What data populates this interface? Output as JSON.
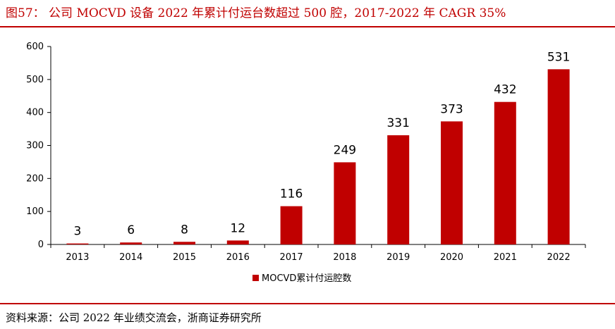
{
  "header": {
    "title": "图57：  公司 MOCVD 设备 2022 年累计付运台数超过 500 腔，2017-2022 年 CAGR 35%"
  },
  "footer": {
    "source": "资料来源：公司 2022 年业绩交流会，浙商证券研究所"
  },
  "colors": {
    "bar": "#c00000",
    "rule": "#c00000"
  },
  "chart_data": {
    "type": "bar",
    "title": "",
    "xlabel": "",
    "ylabel": "",
    "categories": [
      "2013",
      "2014",
      "2015",
      "2016",
      "2017",
      "2018",
      "2019",
      "2020",
      "2021",
      "2022"
    ],
    "series": [
      {
        "name": "MOCVD累计付运腔数",
        "values": [
          3,
          6,
          8,
          12,
          116,
          249,
          331,
          373,
          432,
          531
        ]
      }
    ],
    "ylim": [
      0,
      600
    ],
    "yticks": [
      0,
      100,
      200,
      300,
      400,
      500,
      600
    ],
    "legend": "bottom-center",
    "grid": false
  }
}
